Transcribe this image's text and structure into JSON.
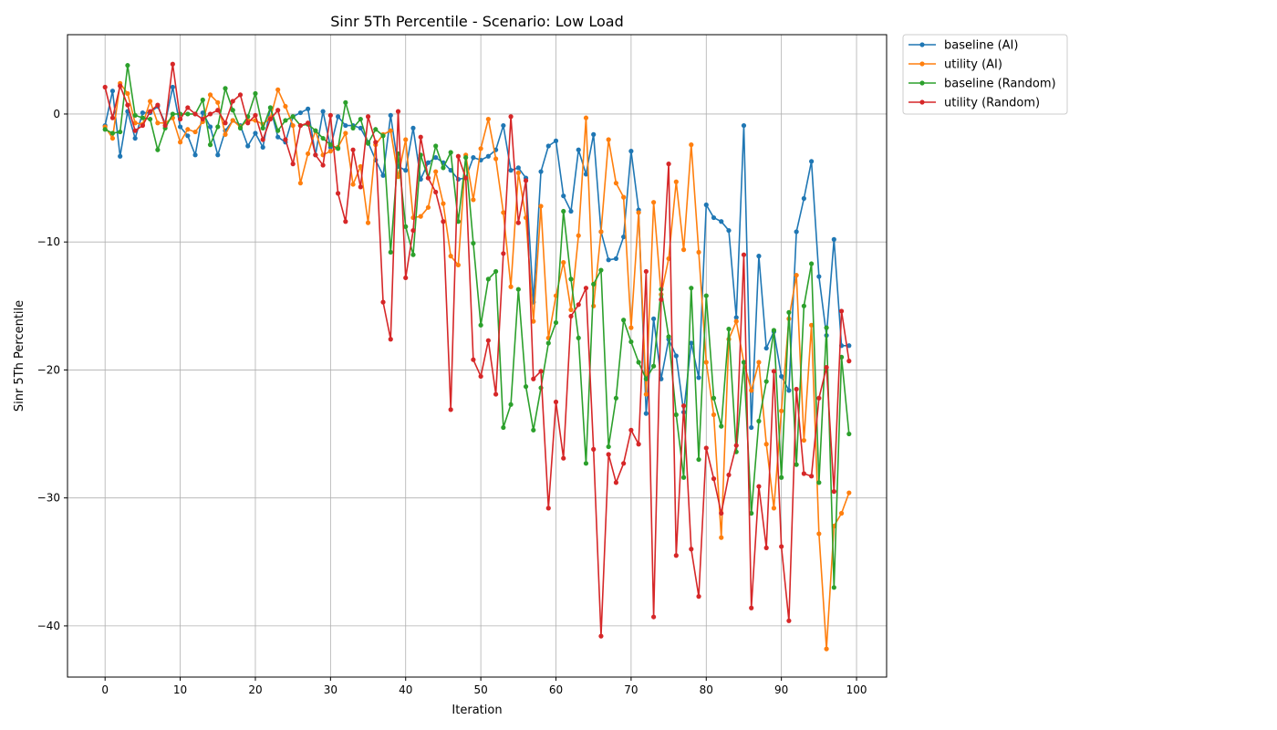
{
  "chart_data": {
    "type": "line",
    "title": "Sinr 5Th Percentile - Scenario: Low Load",
    "xlabel": "Iteration",
    "ylabel": "Sinr 5Th Percentile",
    "xlim": [
      -5,
      104
    ],
    "ylim": [
      -44,
      6.2
    ],
    "xticks": [
      0,
      10,
      20,
      30,
      40,
      50,
      60,
      70,
      80,
      90,
      100
    ],
    "yticks": [
      0,
      -10,
      -20,
      -30,
      -40
    ],
    "grid": true,
    "legend_position": "outside-top-right",
    "series": [
      {
        "name": "baseline (AI)",
        "color": "#1f77b4",
        "values": [
          -0.9,
          1.8,
          -3.3,
          0.2,
          -1.9,
          0.1,
          0.1,
          0.6,
          -0.7,
          2.1,
          -1.0,
          -1.7,
          -3.2,
          0.1,
          -1.0,
          -3.2,
          -1.3,
          -0.5,
          -0.9,
          -2.5,
          -1.5,
          -2.6,
          0.5,
          -1.8,
          -2.2,
          -0.2,
          0.1,
          0.4,
          -3.2,
          0.2,
          -2.6,
          -0.2,
          -0.9,
          -0.9,
          -1.1,
          -2.2,
          -3.6,
          -4.8,
          -0.1,
          -4.1,
          -4.4,
          -1.1,
          -5.1,
          -3.8,
          -3.4,
          -3.8,
          -4.4,
          -5.1,
          -5.0,
          -3.4,
          -3.6,
          -3.3,
          -2.8,
          -0.9,
          -4.4,
          -4.2,
          -5.0,
          -14.7,
          -4.5,
          -2.5,
          -2.1,
          -6.4,
          -7.6,
          -2.8,
          -4.7,
          -1.6,
          -9.2,
          -11.4,
          -11.3,
          -9.6,
          -2.9,
          -7.5,
          -23.4,
          -16.0,
          -20.7,
          -17.6,
          -18.9,
          -23.3,
          -17.9,
          -20.6,
          -7.1,
          -8.1,
          -8.4,
          -9.1,
          -15.9,
          -0.9,
          -24.5,
          -11.1,
          -18.3,
          -17.0,
          -20.5,
          -21.6,
          -9.2,
          -6.6,
          -3.7,
          -12.7,
          -17.3,
          -9.8,
          -18.1,
          -18.1
        ]
      },
      {
        "name": "utility (AI)",
        "color": "#ff7f0e",
        "values": [
          -1.0,
          -1.9,
          2.4,
          1.6,
          -0.7,
          -0.8,
          1.0,
          -0.7,
          -0.7,
          -0.3,
          -2.2,
          -1.2,
          -1.4,
          -0.6,
          1.5,
          0.9,
          -1.6,
          -0.5,
          -1.0,
          -0.5,
          -0.5,
          -0.8,
          -0.3,
          1.9,
          0.6,
          -0.9,
          -5.4,
          -3.1,
          -1.3,
          -3.2,
          -2.9,
          -2.6,
          -1.5,
          -5.5,
          -4.1,
          -8.5,
          -2.4,
          -1.6,
          -1.3,
          -4.9,
          -2.0,
          -8.1,
          -8.0,
          -7.3,
          -4.5,
          -7.0,
          -11.1,
          -11.8,
          -3.2,
          -6.7,
          -2.7,
          -0.4,
          -3.5,
          -7.7,
          -13.5,
          -4.6,
          -8.1,
          -16.2,
          -7.2,
          -17.5,
          -14.2,
          -11.6,
          -15.3,
          -9.5,
          -0.3,
          -15.0,
          -9.2,
          -2.0,
          -5.4,
          -6.5,
          -16.7,
          -7.7,
          -21.9,
          -6.9,
          -14.1,
          -11.3,
          -5.3,
          -10.6,
          -2.4,
          -10.8,
          -19.4,
          -23.5,
          -33.1,
          -17.6,
          -16.2,
          -19.4,
          -21.6,
          -19.4,
          -25.8,
          -30.8,
          -23.2,
          -16.0,
          -12.6,
          -25.5,
          -16.5,
          -32.8,
          -41.8,
          -32.2,
          -31.2,
          -29.6
        ]
      },
      {
        "name": "baseline (Random)",
        "color": "#2ca02c",
        "values": [
          -1.2,
          -1.5,
          -1.4,
          3.8,
          -0.1,
          -0.3,
          -0.4,
          -2.8,
          -1.1,
          0.0,
          0.0,
          0.0,
          0.0,
          1.1,
          -2.4,
          -1.0,
          2.0,
          0.3,
          -1.1,
          -0.2,
          1.6,
          -1.1,
          0.5,
          -1.3,
          -0.5,
          -0.2,
          -0.9,
          -0.8,
          -1.3,
          -1.9,
          -2.4,
          -2.7,
          0.9,
          -1.1,
          -0.4,
          -2.3,
          -1.2,
          -1.7,
          -10.8,
          -3.1,
          -8.8,
          -11.0,
          -3.2,
          -5.0,
          -2.5,
          -4.2,
          -3.0,
          -8.4,
          -3.4,
          -10.1,
          -16.5,
          -12.9,
          -12.3,
          -24.5,
          -22.7,
          -13.7,
          -21.3,
          -24.7,
          -21.4,
          -17.9,
          -16.3,
          -7.6,
          -12.9,
          -17.5,
          -27.3,
          -13.3,
          -12.2,
          -26.0,
          -22.2,
          -16.1,
          -17.8,
          -19.4,
          -20.7,
          -19.7,
          -13.7,
          -17.4,
          -23.5,
          -28.4,
          -13.6,
          -27.0,
          -14.2,
          -22.2,
          -24.4,
          -16.8,
          -26.4,
          -19.4,
          -31.2,
          -24.0,
          -20.9,
          -16.9,
          -28.4,
          -15.5,
          -27.4,
          -15.0,
          -11.7,
          -28.8,
          -16.7,
          -37.0,
          -19.0,
          -25.0
        ]
      },
      {
        "name": "utility (Random)",
        "color": "#d62728",
        "values": [
          2.1,
          -0.3,
          2.2,
          0.7,
          -1.3,
          -0.9,
          0.2,
          0.7,
          -0.9,
          3.9,
          -0.4,
          0.5,
          0.0,
          -0.4,
          0.0,
          0.3,
          -0.7,
          1.0,
          1.5,
          -0.7,
          -0.1,
          -2.0,
          -0.4,
          0.3,
          -2.0,
          -3.9,
          -0.9,
          -0.7,
          -3.2,
          -4.0,
          -0.1,
          -6.2,
          -8.4,
          -2.8,
          -5.7,
          -0.2,
          -2.2,
          -14.7,
          -17.6,
          0.2,
          -12.8,
          -9.1,
          -1.8,
          -5.0,
          -6.1,
          -8.4,
          -23.1,
          -3.3,
          -5.0,
          -19.2,
          -20.5,
          -17.7,
          -21.9,
          -10.9,
          -0.2,
          -8.5,
          -5.2,
          -20.7,
          -20.1,
          -30.8,
          -22.5,
          -26.9,
          -15.8,
          -14.9,
          -13.6,
          -26.2,
          -40.8,
          -26.6,
          -28.8,
          -27.3,
          -24.7,
          -25.8,
          -12.3,
          -39.3,
          -14.5,
          -3.9,
          -34.5,
          -22.8,
          -34.0,
          -37.7,
          -26.1,
          -28.5,
          -31.2,
          -28.2,
          -25.9,
          -11.0,
          -38.6,
          -29.1,
          -33.9,
          -20.1,
          -33.8,
          -39.6,
          -21.5,
          -28.1,
          -28.3,
          -22.2,
          -19.8,
          -29.5,
          -15.4,
          -19.3
        ]
      }
    ]
  }
}
